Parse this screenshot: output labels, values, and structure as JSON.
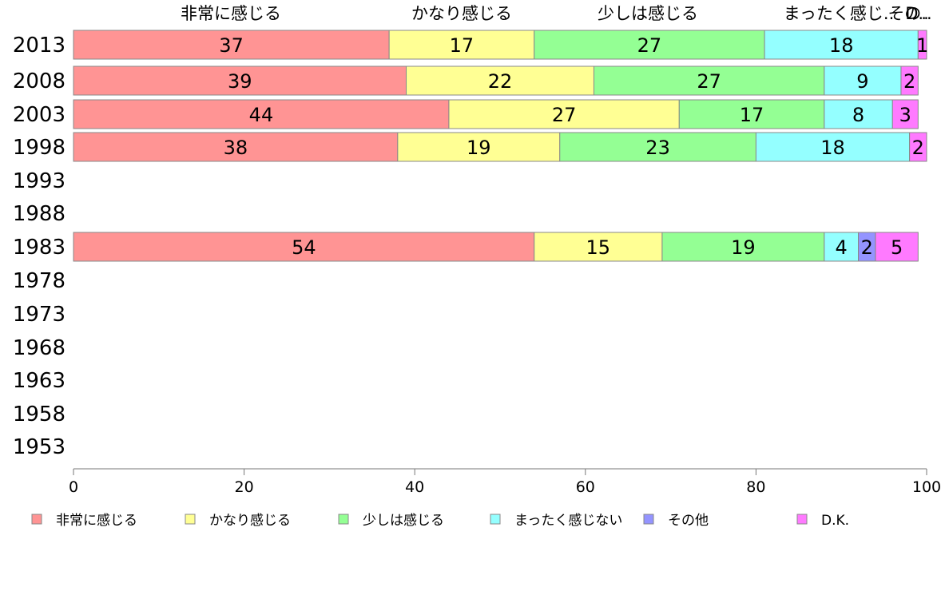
{
  "chart_data": {
    "type": "bar",
    "orientation": "horizontal",
    "stacked": true,
    "categories": [
      "2013",
      "2008",
      "2003",
      "1998",
      "1993",
      "1988",
      "1983",
      "1978",
      "1973",
      "1968",
      "1963",
      "1958",
      "1953"
    ],
    "series": [
      {
        "name": "非常に感じる",
        "color": "#ff9494",
        "values": [
          37,
          39,
          44,
          38,
          null,
          null,
          54,
          null,
          null,
          null,
          null,
          null,
          null
        ]
      },
      {
        "name": "かなり感じる",
        "color": "#ffff94",
        "values": [
          17,
          22,
          27,
          19,
          null,
          null,
          15,
          null,
          null,
          null,
          null,
          null,
          null
        ]
      },
      {
        "name": "少しは感じる",
        "color": "#94ff94",
        "values": [
          27,
          27,
          17,
          23,
          null,
          null,
          19,
          null,
          null,
          null,
          null,
          null,
          null
        ]
      },
      {
        "name": "まったく感じない",
        "color": "#94ffff",
        "values": [
          18,
          9,
          8,
          18,
          null,
          null,
          4,
          null,
          null,
          null,
          null,
          null,
          null
        ]
      },
      {
        "name": "その他",
        "color": "#9494ff",
        "values": [
          0,
          0,
          0,
          0,
          null,
          null,
          2,
          null,
          null,
          null,
          null,
          null,
          null
        ]
      },
      {
        "name": "D.K.",
        "color": "#ff7aff",
        "values": [
          1,
          2,
          3,
          2,
          null,
          null,
          5,
          null,
          null,
          null,
          null,
          null,
          null
        ]
      }
    ],
    "top_labels": [
      "非常に感じる",
      "かなり感じる",
      "少しは感じる",
      "まったく感じ..",
      "その..",
      "D.."
    ],
    "xlim": [
      0,
      100
    ],
    "xticks": [
      "0",
      "20",
      "40",
      "60",
      "80",
      "100"
    ],
    "title": "",
    "xlabel": "",
    "ylabel": "",
    "grid": false,
    "legend_position": "bottom"
  }
}
